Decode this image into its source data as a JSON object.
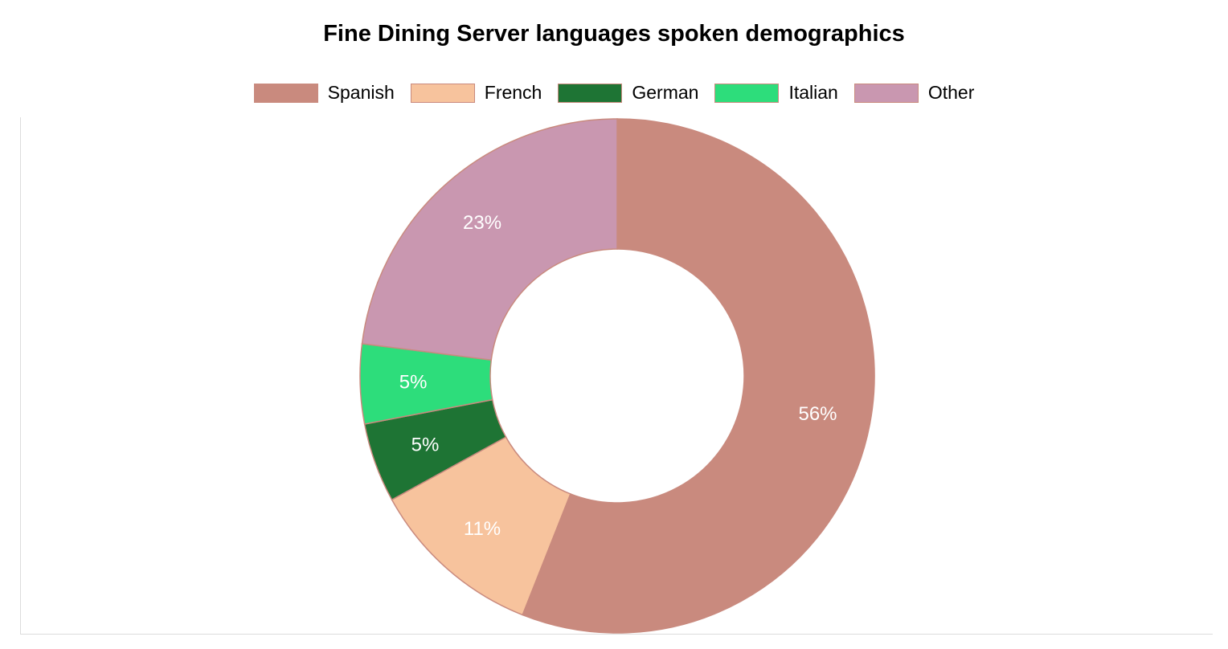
{
  "chart_data": {
    "type": "pie",
    "variant": "donut",
    "title": "Fine Dining Server languages spoken demographics",
    "legend_position": "top",
    "categories": [
      "Spanish",
      "French",
      "German",
      "Italian",
      "Other"
    ],
    "values": [
      56,
      11,
      5,
      5,
      23
    ],
    "labels": [
      "56%",
      "11%",
      "5%",
      "5%",
      "23%"
    ],
    "colors": [
      "#c98a7e",
      "#f7c39d",
      "#1e7434",
      "#2ddd7b",
      "#c997b0"
    ],
    "border_color": "#c98a7e",
    "label_color": "#ffffff",
    "grid": false
  }
}
